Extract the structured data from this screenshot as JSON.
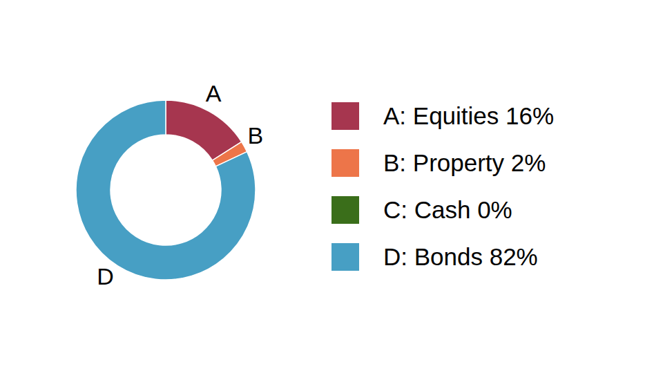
{
  "chart_data": {
    "type": "donut",
    "categories": [
      "A: Equities 16%",
      "B: Property 2%",
      "C: Cash 0%",
      "D: Bonds 82%"
    ],
    "slice_labels": [
      "A",
      "B",
      null,
      "D"
    ],
    "values": [
      16,
      2,
      0,
      82
    ],
    "colors": [
      "#a6364f",
      "#ed7549",
      "#3a6e1a",
      "#479fc4"
    ],
    "legend": "right"
  }
}
